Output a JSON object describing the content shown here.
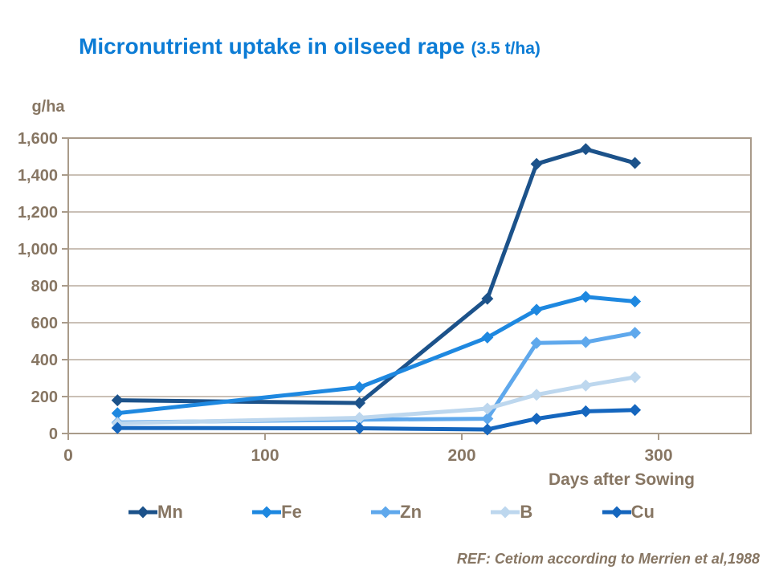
{
  "title": {
    "main": "Micronutrient uptake in oilseed rape",
    "note": "(3.5 t/ha)"
  },
  "chart_data": {
    "type": "line",
    "title": "Micronutrient uptake in oilseed rape (3.5 t/ha)",
    "ylabel": "g/ha",
    "xlabel": "Days after Sowing",
    "x": [
      25,
      148,
      213,
      238,
      263,
      288
    ],
    "series": [
      {
        "name": "Mn",
        "color": "#1c528a",
        "values": [
          180,
          165,
          730,
          1460,
          1540,
          1465
        ]
      },
      {
        "name": "Fe",
        "color": "#1e88e0",
        "values": [
          110,
          250,
          520,
          670,
          740,
          715
        ]
      },
      {
        "name": "Zn",
        "color": "#5fa8ec",
        "values": [
          60,
          75,
          80,
          490,
          495,
          545
        ]
      },
      {
        "name": "B",
        "color": "#bdd7ee",
        "values": [
          55,
          85,
          135,
          210,
          260,
          305
        ]
      },
      {
        "name": "Cu",
        "color": "#1566be",
        "values": [
          30,
          28,
          22,
          80,
          120,
          127
        ]
      }
    ],
    "xlim": [
      0,
      347
    ],
    "ylim": [
      0,
      1600
    ],
    "xticks": [
      {
        "v": 0,
        "label": "0"
      },
      {
        "v": 100,
        "label": "100"
      },
      {
        "v": 200,
        "label": "200"
      },
      {
        "v": 300,
        "label": "300"
      }
    ],
    "yticks": [
      {
        "v": 0,
        "label": "0"
      },
      {
        "v": 200,
        "label": "200"
      },
      {
        "v": 400,
        "label": "400"
      },
      {
        "v": 600,
        "label": "600"
      },
      {
        "v": 800,
        "label": "800"
      },
      {
        "v": 1000,
        "label": "1,000"
      },
      {
        "v": 1200,
        "label": "1,200"
      },
      {
        "v": 1400,
        "label": "1,400"
      },
      {
        "v": 1600,
        "label": "1,600"
      }
    ],
    "grid": "horizontal",
    "legend_position": "bottom",
    "marker": "diamond"
  },
  "footer": {
    "reference": "REF: Cetiom according to Merrien et al,1988"
  },
  "colors": {
    "title_blue": "#0c7cd5",
    "axis_text": "#877663",
    "gridline": "#b9ac9d",
    "plot_border": "#a99b8a"
  }
}
